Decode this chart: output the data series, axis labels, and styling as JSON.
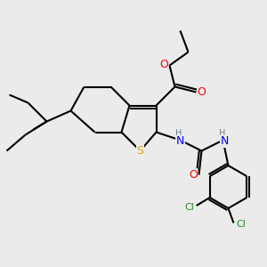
{
  "background_color": "#ebebeb",
  "atom_colors": {
    "C": "#000000",
    "H": "#708090",
    "N": "#0000FF",
    "O": "#FF0000",
    "S": "#DAA520",
    "Cl": "#228B22"
  }
}
